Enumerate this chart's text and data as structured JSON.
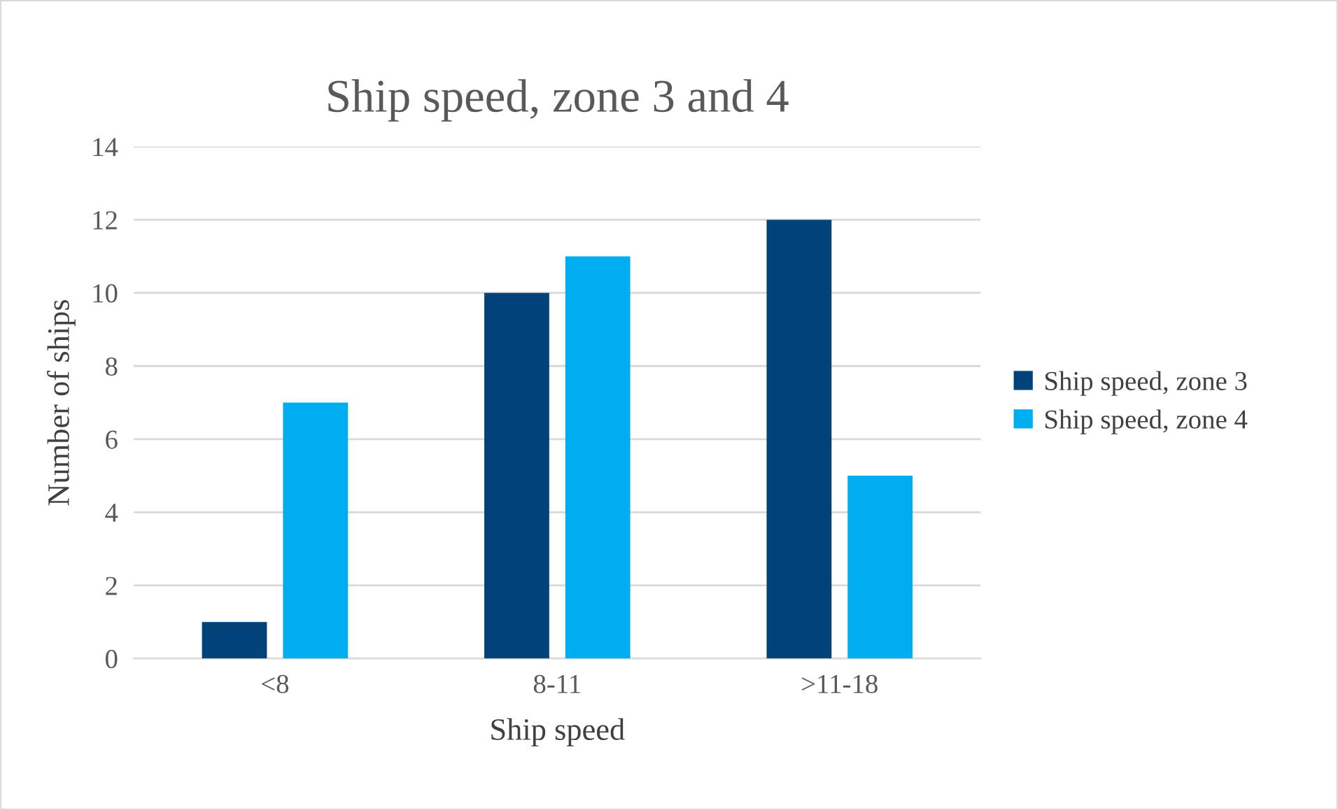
{
  "chart_data": {
    "type": "bar",
    "title": "Ship speed, zone 3 and 4",
    "xlabel": "Ship speed",
    "ylabel": "Number of ships",
    "categories": [
      "<8",
      "8-11",
      ">11-18"
    ],
    "series": [
      {
        "name": "Ship speed, zone 3",
        "color": "#00427a",
        "values": [
          1,
          10,
          12
        ]
      },
      {
        "name": "Ship speed, zone 4",
        "color": "#00adee",
        "values": [
          7,
          11,
          5
        ]
      }
    ],
    "ylim": [
      0,
      14
    ],
    "yticks": [
      0,
      2,
      4,
      6,
      8,
      10,
      12,
      14
    ],
    "grid": "y",
    "legend": "right"
  }
}
